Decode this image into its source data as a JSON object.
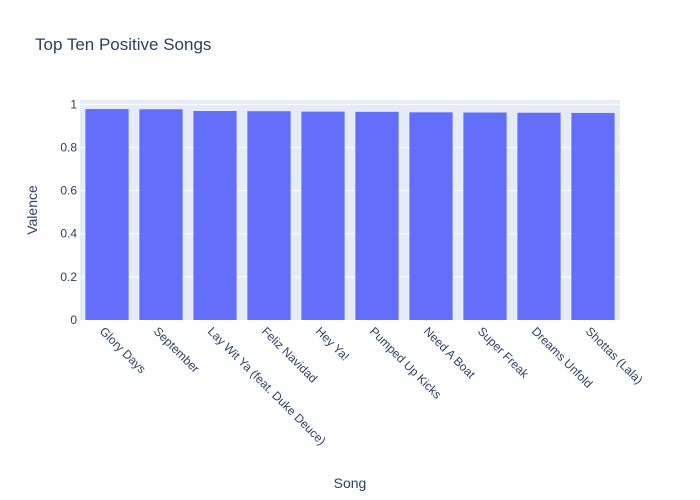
{
  "chart_data": {
    "type": "bar",
    "title": "Top Ten Positive Songs",
    "xlabel": "Song",
    "ylabel": "Valence",
    "categories": [
      "Glory Days",
      "September",
      "Lay Wit Ya (feat. Duke Deuce)",
      "Feliz Navidad",
      "Hey Ya!",
      "Pumped Up Kicks",
      "Need A Boat",
      "Super Freak",
      "Dreams Unfold",
      "Shottas (Lala)"
    ],
    "values": [
      0.978,
      0.977,
      0.969,
      0.968,
      0.966,
      0.965,
      0.963,
      0.962,
      0.961,
      0.96
    ],
    "ylim": [
      0,
      1.02
    ],
    "yticks": [
      0,
      0.2,
      0.4,
      0.6,
      0.8,
      1
    ],
    "ytick_labels": [
      "0",
      "0.2",
      "0.4",
      "0.6",
      "0.8",
      "1"
    ],
    "grid": true,
    "bar_color": "#636efa",
    "plot_bg": "#e5ecf6"
  }
}
